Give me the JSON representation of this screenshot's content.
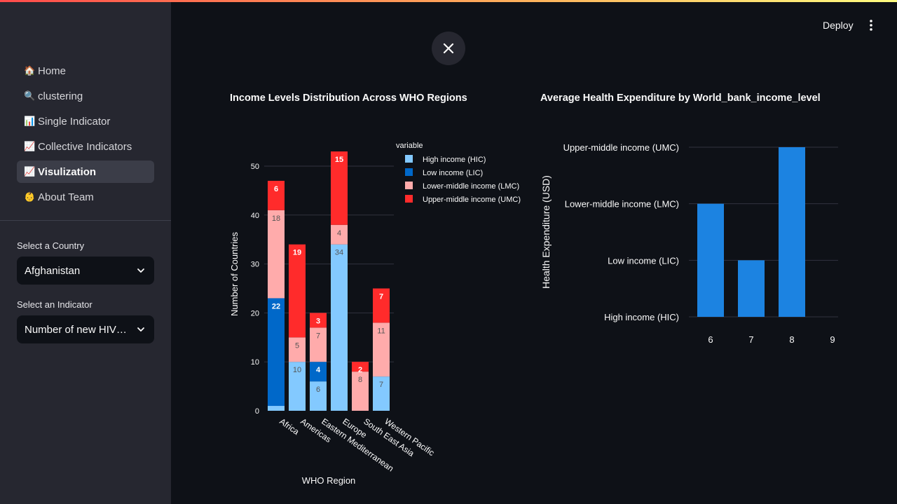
{
  "header": {
    "deploy_label": "Deploy"
  },
  "sidebar": {
    "items": [
      {
        "icon": "🏠",
        "label": "Home",
        "active": false
      },
      {
        "icon": "🔍",
        "label": "clustering",
        "active": false
      },
      {
        "icon": "📊",
        "label": "Single Indicator",
        "active": false
      },
      {
        "icon": "📈",
        "label": "Collective Indicators",
        "active": false
      },
      {
        "icon": "📈",
        "label": "Visulization",
        "active": true
      },
      {
        "icon": "👶",
        "label": "About Team",
        "active": false
      }
    ],
    "country_label": "Select a Country",
    "country_value": "Afghanistan",
    "indicator_label": "Select an Indicator",
    "indicator_value": "Number of new HIV infections"
  },
  "charts": {
    "left_title": "Income Levels Distribution Across WHO Regions",
    "right_title": "Average Health Expenditure by World_bank_income_level"
  },
  "chart_data": [
    {
      "type": "bar",
      "stacked": true,
      "title": "Income Levels Distribution Across WHO Regions",
      "xlabel": "WHO Region",
      "ylabel": "Number of Countries",
      "ylim": [
        0,
        53
      ],
      "yticks": [
        0,
        10,
        20,
        30,
        40,
        50
      ],
      "legend_title": "variable",
      "legend_position": "top-right",
      "categories": [
        "Africa",
        "Americas",
        "Eastern Mediterranean",
        "Europe",
        "South East Asia",
        "Western Pacific"
      ],
      "series": [
        {
          "name": "High income (HIC)",
          "color": "#83c9ff",
          "values": [
            1,
            10,
            6,
            34,
            0,
            7
          ],
          "labels": [
            "",
            "10",
            "6",
            "34",
            "",
            "7"
          ],
          "label_color": "#555555"
        },
        {
          "name": "Low income (LIC)",
          "color": "#0068c9",
          "values": [
            22,
            0,
            4,
            0,
            0,
            0
          ],
          "labels": [
            "22",
            "",
            "4",
            "",
            "",
            ""
          ],
          "label_color": "#ffffff"
        },
        {
          "name": "Lower-middle income (LMC)",
          "color": "#ffabab",
          "values": [
            18,
            5,
            7,
            4,
            8,
            11
          ],
          "labels": [
            "18",
            "5",
            "7",
            "4",
            "8",
            "11"
          ],
          "label_color": "#555555"
        },
        {
          "name": "Upper-middle income (UMC)",
          "color": "#ff2b2b",
          "values": [
            6,
            19,
            3,
            15,
            2,
            7
          ],
          "labels": [
            "6",
            "19",
            "3",
            "15",
            "2",
            "7"
          ],
          "label_color": "#ffffff"
        }
      ]
    },
    {
      "type": "bar",
      "title": "Average Health Expenditure by World_bank_income_level",
      "ylabel": "Health Expenditure (USD)",
      "xlabel": "",
      "y_categories": [
        "High income (HIC)",
        "Low income (LIC)",
        "Lower-middle income (LMC)",
        "Upper-middle income (UMC)"
      ],
      "xticks": [
        6,
        7,
        8,
        9
      ],
      "color": "#1c83e1",
      "bars": [
        {
          "x": 6,
          "y": "Lower-middle income (LMC)"
        },
        {
          "x": 7,
          "y": "Low income (LIC)"
        },
        {
          "x": 8,
          "y": "Upper-middle income (UMC)"
        }
      ]
    }
  ]
}
